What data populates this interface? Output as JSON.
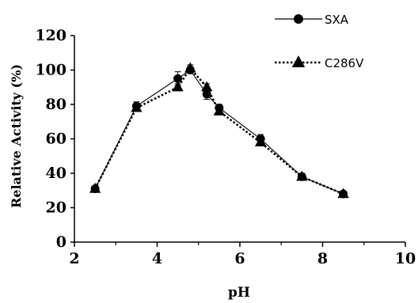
{
  "chart_data": {
    "type": "line",
    "xlabel": "pH",
    "ylabel": "Relative Activity (%)",
    "xlim": [
      2,
      10
    ],
    "ylim": [
      0,
      120
    ],
    "x_ticks": [
      "2",
      "4",
      "6",
      "8",
      "10"
    ],
    "y_ticks": [
      "0",
      "20",
      "40",
      "60",
      "80",
      "100",
      "120"
    ],
    "grid": false,
    "legend_position": "top-right",
    "series": [
      {
        "name": "SXA",
        "marker": "circle",
        "line_style": "solid",
        "x": [
          2.5,
          3.5,
          4.5,
          4.8,
          5.2,
          5.5,
          6.5,
          7.5,
          8.5
        ],
        "y": [
          31,
          79,
          95,
          100,
          86,
          78,
          60,
          38,
          28
        ],
        "error": [
          1.5,
          2.5,
          4,
          2,
          3,
          2,
          2.5,
          2,
          1.5
        ]
      },
      {
        "name": "C286V",
        "marker": "triangle",
        "line_style": "dotted",
        "x": [
          2.5,
          3.5,
          4.5,
          4.8,
          5.2,
          5.5,
          6.5,
          7.5,
          8.5
        ],
        "y": [
          31,
          78,
          90,
          101,
          90,
          76,
          58,
          38,
          28
        ],
        "error": [
          1.5,
          2,
          2,
          2,
          2,
          2,
          2,
          1.5,
          1.5
        ]
      }
    ]
  }
}
